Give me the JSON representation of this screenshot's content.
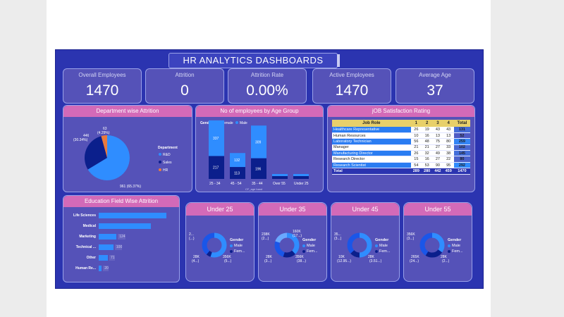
{
  "title": "HR ANALYTICS DASHBOARDS",
  "kpis": [
    {
      "label": "Overall Employees",
      "value": "1470"
    },
    {
      "label": "Attrition",
      "value": "0"
    },
    {
      "label": "Attrition Rate",
      "value": "0.00%"
    },
    {
      "label": "Active Employees",
      "value": "1470"
    },
    {
      "label": "Average Age",
      "value": "37"
    }
  ],
  "dept": {
    "title": "Department wise Attrition",
    "legend_title": "Department",
    "legend": [
      {
        "name": "R&D",
        "color": "#2f8dff"
      },
      {
        "name": "Sales",
        "color": "#0b1f8c"
      },
      {
        "name": "HR",
        "color": "#e97a3e"
      }
    ],
    "labels": {
      "r": "961 (65.37%)",
      "s1": "446",
      "s2": "(30.34%)",
      "h1": "63",
      "h2": "(4.29%)"
    }
  },
  "agegroup": {
    "title": "No of employees by Age Group",
    "legend_title": "Gender",
    "female": "Female",
    "male": "Male",
    "xlabel": "CF_age band"
  },
  "jobsat": {
    "title": "jOB Satisfaction Rating",
    "headers": [
      "Job Role",
      "1",
      "2",
      "3",
      "4",
      "Total"
    ],
    "rows": [
      [
        "Healthcare Representative",
        "26",
        "19",
        "43",
        "43",
        "131"
      ],
      [
        "Human Resources",
        "10",
        "16",
        "13",
        "13",
        "52"
      ],
      [
        "Laboratory Technician",
        "56",
        "48",
        "75",
        "80",
        "259"
      ],
      [
        "Manager",
        "21",
        "21",
        "27",
        "33",
        "102"
      ],
      [
        "Manufacturing Director",
        "26",
        "32",
        "49",
        "38",
        "145"
      ],
      [
        "Research Director",
        "15",
        "16",
        "27",
        "22",
        "80"
      ],
      [
        "Research Scientist",
        "54",
        "53",
        "90",
        "95",
        "292"
      ]
    ],
    "total": [
      "Total",
      "289",
      "280",
      "442",
      "459",
      "1470"
    ]
  },
  "education": {
    "title": "Education Field Wise Attrition",
    "items": [
      {
        "label": "Life Sciences",
        "value": "",
        "v": 606
      },
      {
        "label": "Medical",
        "value": "",
        "v": 464
      },
      {
        "label": "Marketing",
        "value": "124",
        "v": 159
      },
      {
        "label": "Technical ...",
        "value": "100",
        "v": 132
      },
      {
        "label": "Other",
        "value": "71",
        "v": 82
      },
      {
        "label": "Human Re...",
        "value": "20",
        "v": 27
      }
    ]
  },
  "age_cards": [
    {
      "title": "Under 25",
      "a1": "2...",
      "a2": "(...)",
      "b1": "28K",
      "b2": "(4...)",
      "c1": "356K",
      "c2": "(5...)"
    },
    {
      "title": "Under 35",
      "a1": "238K",
      "a2": "(2...)",
      "b1": "28K",
      "b2": "(3...)",
      "c1": "356K",
      "c2": "(38...)",
      "d1": "160K",
      "d2": "(17...)"
    },
    {
      "title": "Under 45",
      "a1": "35...",
      "a2": "(3...)",
      "b1": "10K",
      "b2": "(12.95...)",
      "c1": "28K",
      "c2": "(3.51...)"
    },
    {
      "title": "Under 55",
      "a1": "356K",
      "a2": "(3...)",
      "b1": "265K",
      "b2": "(24...)",
      "c1": "28K",
      "c2": "(2...)"
    }
  ],
  "donut_legend": {
    "title": "Gender",
    "male": "Male",
    "female": "Fem..."
  },
  "chart_data": [
    {
      "type": "pie",
      "title": "Department wise Attrition",
      "categories": [
        "R&D",
        "Sales",
        "HR"
      ],
      "values": [
        961,
        446,
        63
      ]
    },
    {
      "type": "bar",
      "title": "No of employees by Age Group",
      "xlabel": "CF_age band",
      "categories": [
        "25 - 34",
        "45 - 54",
        "35 - 44",
        "Over 55",
        "Under 25"
      ],
      "series": [
        {
          "name": "Female",
          "values": [
            217,
            113,
            196,
            null,
            null
          ]
        },
        {
          "name": "Male",
          "values": [
            337,
            132,
            309,
            null,
            null
          ]
        }
      ]
    },
    {
      "type": "bar",
      "title": "Education Field Wise Attrition",
      "categories": [
        "Life Sciences",
        "Medical",
        "Marketing",
        "Technical ...",
        "Other",
        "Human Re..."
      ],
      "values": [
        606,
        464,
        159,
        132,
        82,
        27
      ]
    }
  ]
}
